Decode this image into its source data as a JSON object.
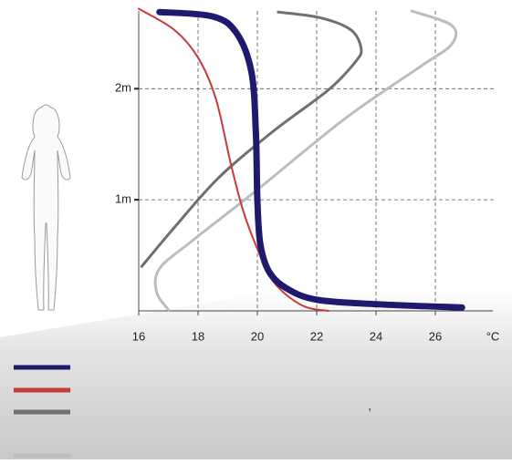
{
  "chart_data": {
    "type": "line",
    "x_label": "°C",
    "xlim": [
      16,
      28
    ],
    "xticks": [
      16,
      18,
      20,
      22,
      24,
      26
    ],
    "ylim": [
      0,
      2.7
    ],
    "yticks": [
      {
        "value": 1,
        "label": "1m"
      },
      {
        "value": 2,
        "label": "2m"
      }
    ],
    "grid": true,
    "annotations": [
      ","
    ],
    "series": [
      {
        "color": "#1f1a6e",
        "width": 7,
        "x": [
          16.7,
          18.5,
          19.3,
          19.8,
          19.95,
          20.0,
          20.1,
          20.4,
          21.0,
          22.0,
          24.0,
          26.9
        ],
        "y": [
          2.69,
          2.65,
          2.5,
          2.15,
          1.6,
          1.0,
          0.6,
          0.35,
          0.2,
          0.1,
          0.06,
          0.03
        ]
      },
      {
        "color": "#c8393a",
        "width": 2,
        "x": [
          16.0,
          17.2,
          18.0,
          18.6,
          19.1,
          19.5,
          19.95,
          20.55,
          21.5,
          22.4
        ],
        "y": [
          2.72,
          2.53,
          2.28,
          1.91,
          1.33,
          0.92,
          0.59,
          0.26,
          0.05,
          0.0
        ]
      },
      {
        "color": "#707070",
        "width": 3,
        "x": [
          16.1,
          17.2,
          18.7,
          20.55,
          22.4,
          23.3,
          23.5,
          23.15,
          22.1,
          20.7
        ],
        "y": [
          0.4,
          0.75,
          1.2,
          1.62,
          1.99,
          2.24,
          2.36,
          2.53,
          2.64,
          2.69
        ]
      },
      {
        "color": "#bdbdbd",
        "width": 3,
        "x": [
          17.0,
          16.6,
          16.7,
          17.8,
          19.95,
          23.0,
          25.5,
          26.55,
          26.55,
          25.2
        ],
        "y": [
          0.01,
          0.17,
          0.38,
          0.63,
          1.08,
          1.74,
          2.2,
          2.4,
          2.57,
          2.7
        ]
      }
    ]
  }
}
